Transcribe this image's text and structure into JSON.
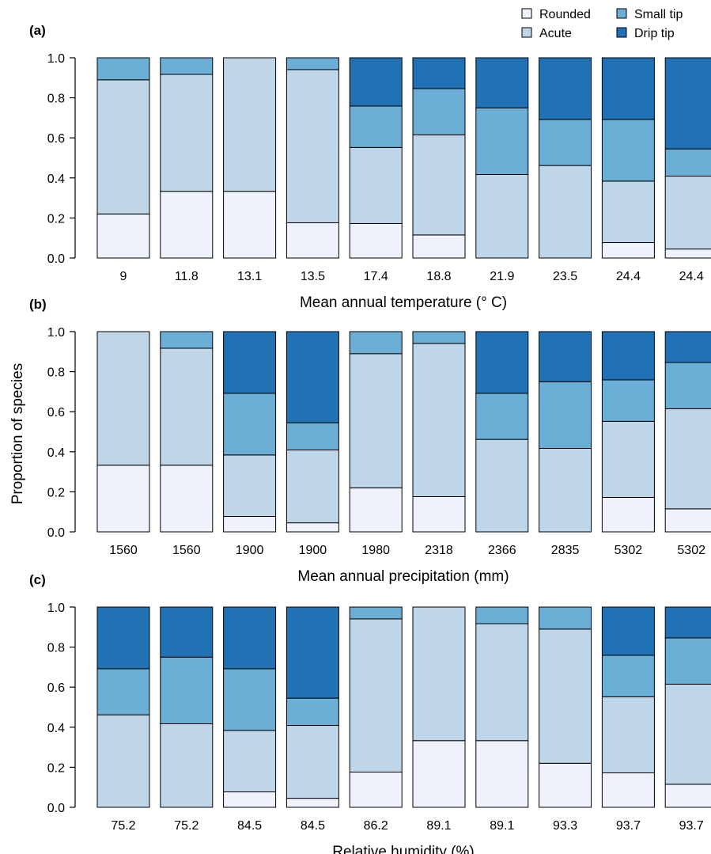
{
  "legend": [
    {
      "name": "Rounded",
      "color": "#eef2fb"
    },
    {
      "name": "Acute",
      "color": "#bfd5e8"
    },
    {
      "name": "Small tip",
      "color": "#6baed6"
    },
    {
      "name": "Drip tip",
      "color": "#2171b5"
    }
  ],
  "y_axis_title": "Proportion of species",
  "chart_data": [
    {
      "type": "bar",
      "stacked": true,
      "panel_label": "(a)",
      "xlabel": "Mean annual temperature (° C)",
      "categories": [
        "9",
        "11.8",
        "13.1",
        "13.5",
        "17.4",
        "18.8",
        "21.9",
        "23.5",
        "24.4",
        "24.4"
      ],
      "ylim": [
        0,
        1
      ],
      "yticks": [
        "0.0",
        "0.2",
        "0.4",
        "0.6",
        "0.8",
        "1.0"
      ],
      "legend_position": "top-right",
      "series": [
        {
          "name": "Rounded",
          "values": [
            0.22,
            0.333,
            0.333,
            0.176,
            0.172,
            0.115,
            0,
            0,
            0.077,
            0.045
          ]
        },
        {
          "name": "Acute",
          "values": [
            0.67,
            0.584,
            0.667,
            0.765,
            0.38,
            0.5,
            0.417,
            0.462,
            0.307,
            0.364
          ]
        },
        {
          "name": "Small tip",
          "values": [
            0.11,
            0.083,
            0,
            0.059,
            0.207,
            0.231,
            0.333,
            0.23,
            0.308,
            0.136
          ]
        },
        {
          "name": "Drip tip",
          "values": [
            0,
            0,
            0,
            0,
            0.241,
            0.154,
            0.25,
            0.308,
            0.308,
            0.455
          ]
        }
      ]
    },
    {
      "type": "bar",
      "stacked": true,
      "panel_label": "(b)",
      "xlabel": "Mean annual precipitation (mm)",
      "categories": [
        "1560",
        "1560",
        "1900",
        "1900",
        "1980",
        "2318",
        "2366",
        "2835",
        "5302",
        "5302"
      ],
      "ylim": [
        0,
        1
      ],
      "yticks": [
        "0.0",
        "0.2",
        "0.4",
        "0.6",
        "0.8",
        "1.0"
      ],
      "series": [
        {
          "name": "Rounded",
          "values": [
            0.333,
            0.333,
            0.077,
            0.045,
            0.22,
            0.176,
            0,
            0,
            0.172,
            0.115
          ]
        },
        {
          "name": "Acute",
          "values": [
            0.667,
            0.584,
            0.307,
            0.364,
            0.67,
            0.765,
            0.462,
            0.417,
            0.38,
            0.5
          ]
        },
        {
          "name": "Small tip",
          "values": [
            0,
            0.083,
            0.308,
            0.136,
            0.11,
            0.059,
            0.23,
            0.333,
            0.207,
            0.231
          ]
        },
        {
          "name": "Drip tip",
          "values": [
            0,
            0,
            0.308,
            0.455,
            0,
            0,
            0.308,
            0.25,
            0.241,
            0.154
          ]
        }
      ]
    },
    {
      "type": "bar",
      "stacked": true,
      "panel_label": "(c)",
      "xlabel": "Relative humidity (%)",
      "categories": [
        "75.2",
        "75.2",
        "84.5",
        "84.5",
        "86.2",
        "89.1",
        "89.1",
        "93.3",
        "93.7",
        "93.7"
      ],
      "ylim": [
        0,
        1
      ],
      "yticks": [
        "0.0",
        "0.2",
        "0.4",
        "0.6",
        "0.8",
        "1.0"
      ],
      "series": [
        {
          "name": "Rounded",
          "values": [
            0,
            0,
            0.077,
            0.045,
            0.176,
            0.333,
            0.333,
            0.22,
            0.172,
            0.115
          ]
        },
        {
          "name": "Acute",
          "values": [
            0.462,
            0.417,
            0.307,
            0.364,
            0.765,
            0.667,
            0.584,
            0.67,
            0.38,
            0.5
          ]
        },
        {
          "name": "Small tip",
          "values": [
            0.23,
            0.333,
            0.308,
            0.136,
            0.059,
            0,
            0.083,
            0.11,
            0.207,
            0.231
          ]
        },
        {
          "name": "Drip tip",
          "values": [
            0.308,
            0.25,
            0.308,
            0.455,
            0,
            0,
            0,
            0,
            0.241,
            0.154
          ]
        }
      ]
    }
  ]
}
